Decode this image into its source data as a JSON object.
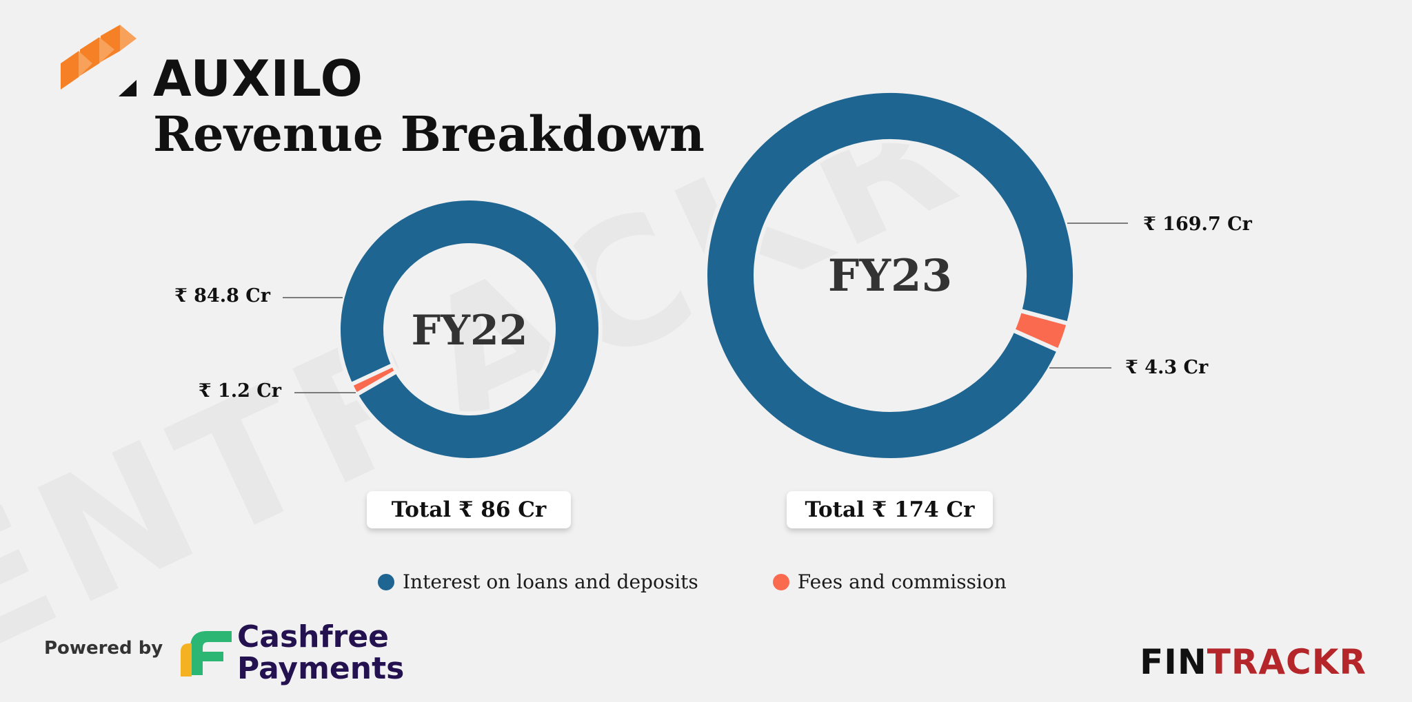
{
  "watermark": "ENTRACKR",
  "brand": {
    "name": "AUXILO"
  },
  "title": "Revenue Breakdown",
  "colors": {
    "interest": "#1f6591",
    "fees": "#fa6a4f",
    "background": "#f1f1f1"
  },
  "chart_data": [
    {
      "type": "pie",
      "variant": "donut",
      "center_label": "FY22",
      "total_label": "Total ₹ 86 Cr",
      "slices": [
        {
          "label": "Interest on loans and deposits",
          "value": 84.8,
          "display": "₹ 84.8 Cr"
        },
        {
          "label": "Fees and commission",
          "value": 1.2,
          "display": "₹ 1.2 Cr"
        }
      ]
    },
    {
      "type": "pie",
      "variant": "donut",
      "center_label": "FY23",
      "total_label": "Total ₹ 174 Cr",
      "slices": [
        {
          "label": "Interest on loans and deposits",
          "value": 169.7,
          "display": "₹ 169.7 Cr"
        },
        {
          "label": "Fees and commission",
          "value": 4.3,
          "display": "₹ 4.3 Cr"
        }
      ]
    }
  ],
  "legend": {
    "placement": "bottom",
    "items": [
      {
        "label": "Interest on loans and deposits",
        "color": "#1f6591"
      },
      {
        "label": "Fees and commission",
        "color": "#fa6a4f"
      }
    ]
  },
  "footer": {
    "powered_by": "Powered by",
    "partner_line1": "Cashfree",
    "partner_line2": "Payments",
    "source_brand_part1": "FIN",
    "source_brand_part2": "TRACKR"
  }
}
